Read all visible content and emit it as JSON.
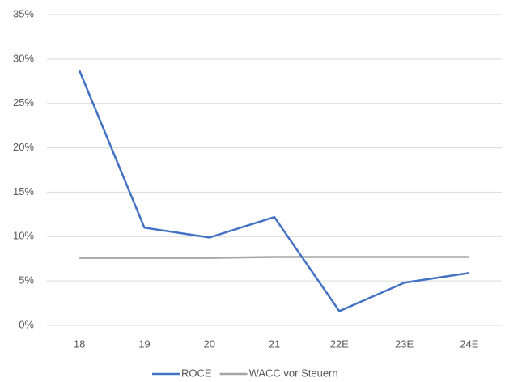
{
  "chart_data": {
    "type": "line",
    "categories": [
      "18",
      "19",
      "20",
      "21",
      "22E",
      "23E",
      "24E"
    ],
    "series": [
      {
        "name": "ROCE",
        "color": "#4472c4",
        "values": [
          28.7,
          11.0,
          9.9,
          12.2,
          1.6,
          4.8,
          5.9
        ]
      },
      {
        "name": "WACC vor Steuern",
        "color": "#a5a5a5",
        "values": [
          7.6,
          7.6,
          7.6,
          7.7,
          7.7,
          7.7,
          7.7
        ]
      }
    ],
    "ylim": [
      0,
      35
    ],
    "yticks": [
      {
        "value": 0,
        "label": "0%"
      },
      {
        "value": 5,
        "label": "5%"
      },
      {
        "value": 10,
        "label": "10%"
      },
      {
        "value": 15,
        "label": "15%"
      },
      {
        "value": 20,
        "label": "20%"
      },
      {
        "value": 25,
        "label": "25%"
      },
      {
        "value": 30,
        "label": "30%"
      },
      {
        "value": 35,
        "label": "35%"
      }
    ],
    "grid": true,
    "legend": "bottom"
  }
}
